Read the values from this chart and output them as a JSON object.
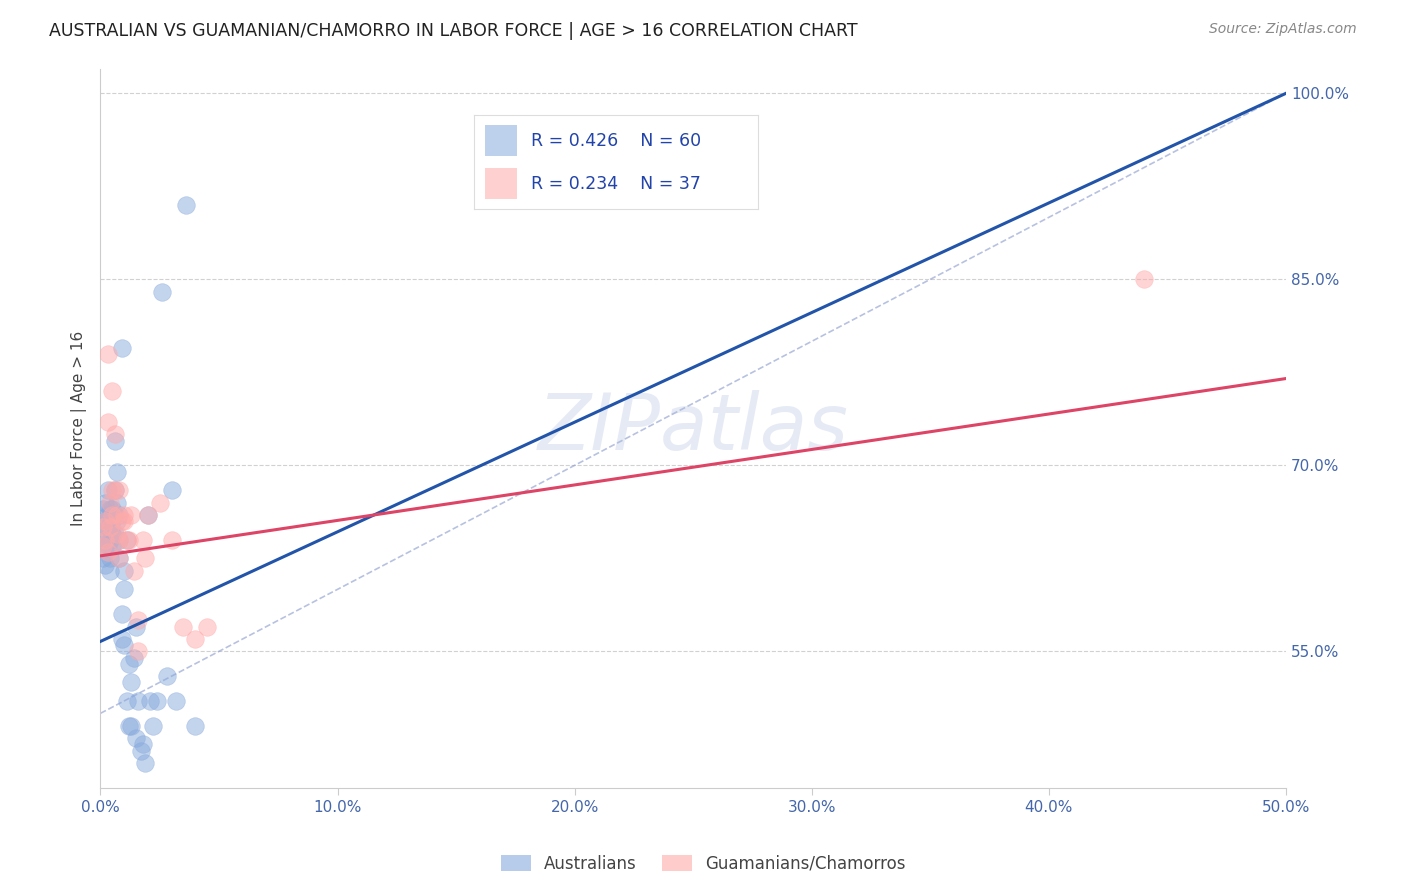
{
  "title": "AUSTRALIAN VS GUAMANIAN/CHAMORRO IN LABOR FORCE | AGE > 16 CORRELATION CHART",
  "source_text": "Source: ZipAtlas.com",
  "ylabel": "In Labor Force | Age > 16",
  "watermark": "ZIPatlas",
  "legend_r1": "R = 0.426",
  "legend_n1": "N = 60",
  "legend_r2": "R = 0.234",
  "legend_n2": "N = 37",
  "blue_color": "#88AADD",
  "pink_color": "#FFAAAA",
  "line_blue": "#2255AA",
  "line_pink": "#DD4466",
  "diag_color": "#8899CC",
  "title_color": "#222222",
  "axis_color": "#4466AA",
  "legend_text_color": "#2244AA",
  "source_color": "#888888",
  "grid_color": "#CCCCCC",
  "spine_color": "#CCCCCC",
  "xlim": [
    0.0,
    0.5
  ],
  "ylim": [
    0.44,
    1.02
  ],
  "ytick_pos": [
    0.55,
    0.7,
    0.85,
    1.0
  ],
  "ytick_labels": [
    "55.0%",
    "70.0%",
    "85.0%",
    "100.0%"
  ],
  "xtick_pos": [
    0.0,
    0.1,
    0.2,
    0.3,
    0.4,
    0.5
  ],
  "xtick_labels": [
    "0.0%",
    "10.0%",
    "20.0%",
    "30.0%",
    "40.0%",
    "50.0%"
  ],
  "blue_scatter_x": [
    0.001,
    0.001,
    0.001,
    0.002,
    0.002,
    0.002,
    0.002,
    0.003,
    0.003,
    0.003,
    0.003,
    0.003,
    0.004,
    0.004,
    0.004,
    0.004,
    0.004,
    0.005,
    0.005,
    0.005,
    0.005,
    0.006,
    0.006,
    0.006,
    0.006,
    0.007,
    0.007,
    0.007,
    0.008,
    0.008,
    0.008,
    0.009,
    0.009,
    0.009,
    0.01,
    0.01,
    0.01,
    0.011,
    0.011,
    0.012,
    0.012,
    0.013,
    0.013,
    0.014,
    0.015,
    0.015,
    0.016,
    0.017,
    0.018,
    0.019,
    0.02,
    0.021,
    0.022,
    0.024,
    0.026,
    0.028,
    0.03,
    0.032,
    0.036,
    0.04
  ],
  "blue_scatter_y": [
    0.665,
    0.64,
    0.625,
    0.67,
    0.655,
    0.635,
    0.62,
    0.66,
    0.65,
    0.68,
    0.645,
    0.635,
    0.65,
    0.665,
    0.64,
    0.625,
    0.615,
    0.655,
    0.645,
    0.665,
    0.635,
    0.72,
    0.68,
    0.66,
    0.645,
    0.695,
    0.67,
    0.655,
    0.66,
    0.64,
    0.625,
    0.795,
    0.58,
    0.56,
    0.6,
    0.615,
    0.555,
    0.64,
    0.51,
    0.54,
    0.49,
    0.525,
    0.49,
    0.545,
    0.57,
    0.48,
    0.51,
    0.47,
    0.475,
    0.46,
    0.66,
    0.51,
    0.49,
    0.51,
    0.84,
    0.53,
    0.68,
    0.51,
    0.91,
    0.49
  ],
  "pink_scatter_x": [
    0.001,
    0.001,
    0.002,
    0.002,
    0.003,
    0.003,
    0.004,
    0.004,
    0.005,
    0.005,
    0.006,
    0.007,
    0.007,
    0.008,
    0.008,
    0.009,
    0.01,
    0.011,
    0.012,
    0.014,
    0.016,
    0.018,
    0.02,
    0.025,
    0.03,
    0.035,
    0.04,
    0.045,
    0.003,
    0.005,
    0.006,
    0.008,
    0.01,
    0.013,
    0.016,
    0.019,
    0.44
  ],
  "pink_scatter_y": [
    0.65,
    0.635,
    0.655,
    0.64,
    0.79,
    0.63,
    0.67,
    0.65,
    0.68,
    0.66,
    0.68,
    0.66,
    0.645,
    0.64,
    0.625,
    0.655,
    0.66,
    0.64,
    0.64,
    0.615,
    0.575,
    0.64,
    0.66,
    0.67,
    0.64,
    0.57,
    0.56,
    0.57,
    0.735,
    0.76,
    0.725,
    0.68,
    0.655,
    0.66,
    0.55,
    0.625,
    0.85
  ],
  "blue_line_x": [
    0.0,
    0.5
  ],
  "blue_line_y": [
    0.558,
    1.0
  ],
  "pink_line_x": [
    0.0,
    0.5
  ],
  "pink_line_y": [
    0.627,
    0.77
  ],
  "diag_line_x": [
    0.0,
    0.5
  ],
  "diag_line_y": [
    0.5,
    1.0
  ]
}
